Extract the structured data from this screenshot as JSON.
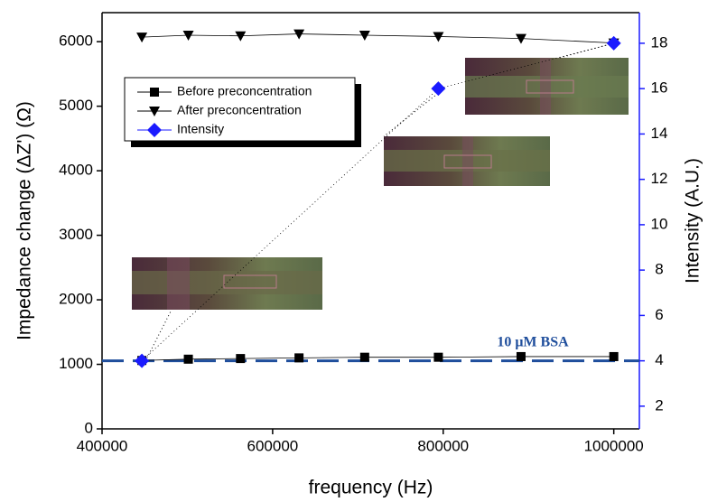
{
  "chart_data": {
    "type": "line",
    "xlabel": "frequency (Hz)",
    "ylabel": "Impedance change (ΔZ') (Ω)",
    "y2label": "Intensity (A.U.)",
    "xlim": [
      400000,
      1030000
    ],
    "xticks": [
      400000,
      600000,
      800000,
      1000000
    ],
    "ylim": [
      0,
      6450
    ],
    "yticks": [
      0,
      1000,
      2000,
      3000,
      4000,
      5000,
      6000
    ],
    "y2lim": [
      1,
      19.35
    ],
    "y2ticks": [
      2,
      4,
      6,
      8,
      10,
      12,
      14,
      16,
      18
    ],
    "series": [
      {
        "name": "Before preconcentration",
        "color": "#000000",
        "marker": "square",
        "x": [
          446684,
          501187,
          562341,
          630957,
          707946,
          794328,
          891251,
          1000000
        ],
        "values": [
          1060,
          1080,
          1090,
          1100,
          1110,
          1110,
          1120,
          1120
        ]
      },
      {
        "name": "After preconcentration",
        "color": "#000000",
        "marker": "triangle-down",
        "x": [
          446684,
          501187,
          562341,
          630957,
          707946,
          794328,
          891251,
          1000000
        ],
        "values": [
          6070,
          6100,
          6090,
          6120,
          6100,
          6080,
          6050,
          5980
        ]
      },
      {
        "name": "Intensity",
        "color": "#1a1aff",
        "marker": "diamond",
        "axis": "y2",
        "x": [
          446684,
          794328,
          1000000
        ],
        "values": [
          4,
          16,
          18
        ]
      }
    ],
    "hlines": [
      {
        "value": 4,
        "axis": "y2",
        "label": "10 μM BSA",
        "color": "#1f4e9c"
      }
    ]
  }
}
